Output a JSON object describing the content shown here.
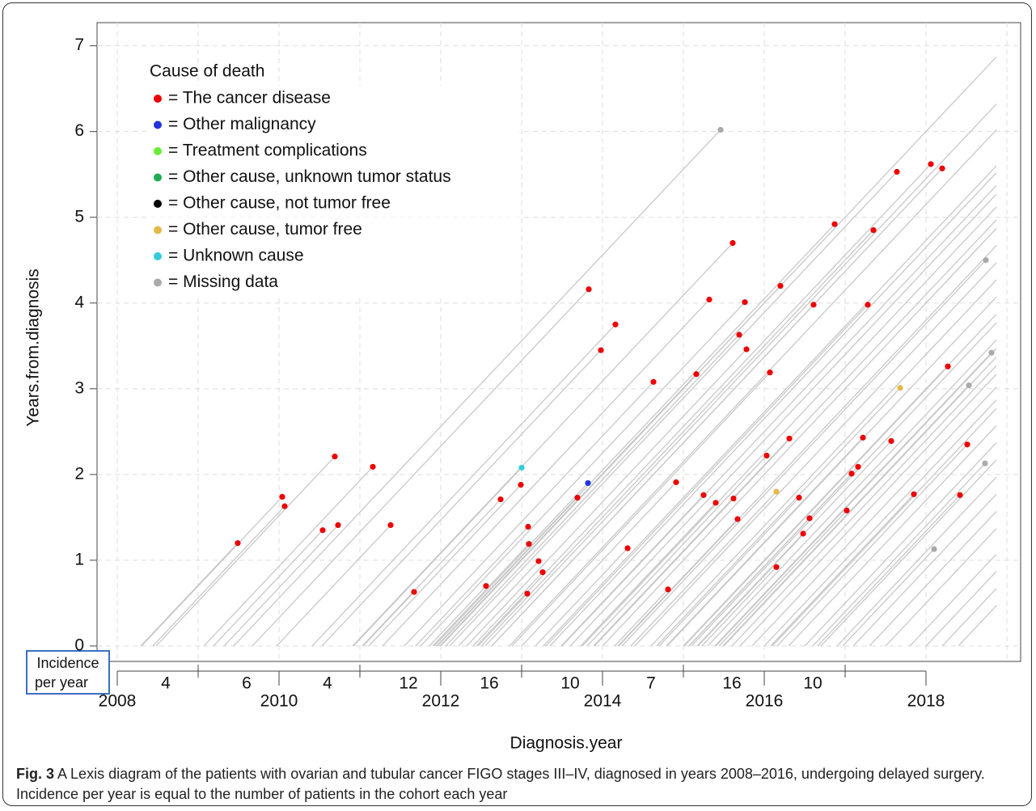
{
  "chart_data": {
    "type": "lexis",
    "xlabel": "Diagnosis.year",
    "ylabel": "Years.from.diagnosis",
    "xlim": [
      2007.75,
      2019.17
    ],
    "ylim": [
      -0.18,
      7.27
    ],
    "xticks": [
      2008,
      2010,
      2012,
      2014,
      2016,
      2018
    ],
    "xminor": [
      2009,
      2011,
      2013,
      2015,
      2017,
      2019
    ],
    "yticks": [
      0,
      1,
      2,
      3,
      4,
      5,
      6,
      7
    ],
    "grid": true,
    "line_color": "#c8c8c8",
    "legend_title": "Cause of death",
    "series": [
      {
        "name": "= The cancer disease",
        "color": "#ee0000",
        "x": [
          2009.49,
          2010.04,
          2010.07,
          2010.54,
          2010.73,
          2010.69,
          2011.16,
          2011.38,
          2011.67,
          2012.56,
          2012.74,
          2012.99,
          2013.08,
          2013.09,
          2013.07,
          2013.21,
          2013.26,
          2013.69,
          2013.83,
          2013.98,
          2014.16,
          2014.31,
          2014.63,
          2014.81,
          2014.91,
          2015.16,
          2015.25,
          2015.32,
          2015.4,
          2015.61,
          2015.62,
          2015.67,
          2015.69,
          2015.76,
          2015.78,
          2016.03,
          2016.07,
          2016.15,
          2016.2,
          2016.31,
          2016.43,
          2016.48,
          2016.56,
          2016.61,
          2016.87,
          2017.02,
          2017.08,
          2017.16,
          2017.22,
          2017.28,
          2017.35,
          2017.57,
          2017.64,
          2017.85,
          2018.06,
          2018.2,
          2018.27,
          2018.42,
          2018.51
        ],
        "y": [
          1.2,
          1.74,
          1.63,
          1.35,
          1.41,
          2.21,
          2.09,
          1.41,
          0.63,
          0.7,
          1.71,
          1.88,
          1.39,
          1.19,
          0.61,
          0.99,
          0.86,
          1.73,
          4.16,
          3.45,
          3.75,
          1.14,
          3.08,
          0.66,
          1.91,
          3.17,
          1.76,
          4.04,
          1.67,
          4.7,
          1.72,
          1.48,
          3.63,
          4.01,
          3.46,
          2.22,
          3.19,
          0.92,
          4.2,
          2.42,
          1.73,
          1.31,
          1.49,
          3.98,
          4.92,
          1.58,
          2.01,
          2.09,
          2.43,
          3.98,
          4.85,
          2.39,
          5.53,
          1.77,
          5.62,
          5.57,
          3.26,
          1.76,
          2.35
        ]
      },
      {
        "name": "= Other malignancy",
        "color": "#2233dd",
        "x": [
          2013.82
        ],
        "y": [
          1.9
        ]
      },
      {
        "name": "= Treatment complications",
        "color": "#66ee33",
        "x": [],
        "y": []
      },
      {
        "name": "= Other cause, unknown tumor status",
        "color": "#22aa55",
        "x": [],
        "y": []
      },
      {
        "name": "= Other cause, not tumor free",
        "color": "#000000",
        "x": [],
        "y": []
      },
      {
        "name": "= Other cause, tumor free",
        "color": "#e6b84a",
        "x": [
          2016.15,
          2017.68
        ],
        "y": [
          1.8,
          3.01
        ]
      },
      {
        "name": "= Unknown cause",
        "color": "#33ccdd",
        "x": [
          2013.0
        ],
        "y": [
          2.08
        ]
      },
      {
        "name": "= Missing data",
        "color": "#aaaaaa",
        "x": [
          2015.46,
          2018.74,
          2018.81,
          2018.53,
          2018.73,
          2018.1
        ],
        "y": [
          6.02,
          4.5,
          3.42,
          3.04,
          2.13,
          1.13
        ]
      }
    ],
    "follow_up_end": 2018.87,
    "censored_starts": [
      2012.0,
      2012.55,
      2012.85,
      2013.27,
      2013.35,
      2013.5,
      2013.6,
      2013.75,
      2013.9,
      2014.0,
      2014.2,
      2014.4,
      2014.6,
      2014.8,
      2015.0,
      2015.1,
      2015.3,
      2015.4,
      2015.5,
      2015.6,
      2015.7,
      2015.85,
      2016.0,
      2016.1,
      2016.3,
      2016.5,
      2016.7,
      2016.9,
      2017.1,
      2017.3,
      2017.5,
      2017.8,
      2018.0,
      2018.2,
      2018.4
    ],
    "incidence": {
      "label": "Incidence per year",
      "values": [
        4,
        6,
        4,
        12,
        16,
        10,
        7,
        16,
        10
      ]
    }
  },
  "caption": {
    "label": "Fig. 3",
    "text": "A Lexis diagram of the patients with ovarian and tubular cancer FIGO stages III–IV, diagnosed in years 2008–2016, undergoing delayed surgery. Incidence per year is equal to the number of patients in the cohort each year"
  }
}
